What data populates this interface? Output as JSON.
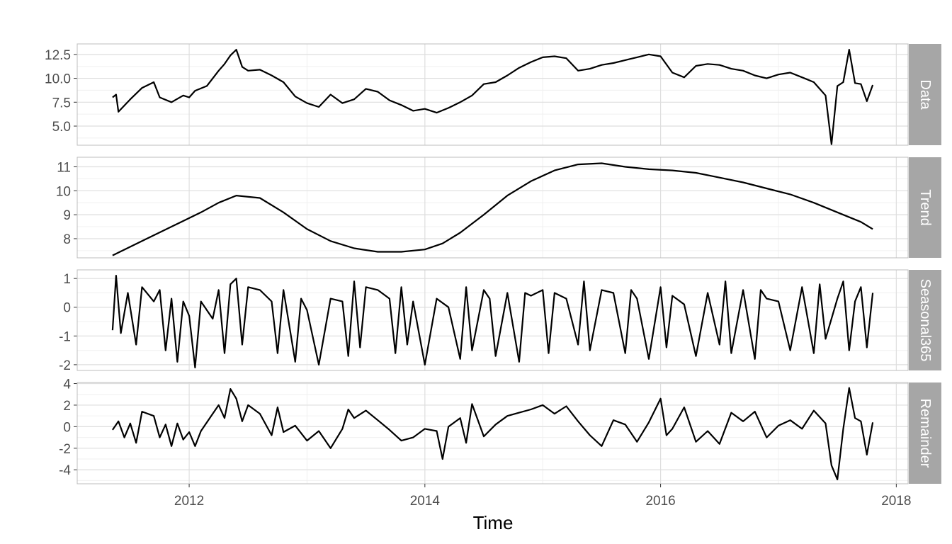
{
  "chart_data": {
    "type": "line",
    "title": "",
    "xlabel": "Time",
    "x_axis": {
      "range": [
        2011.05,
        2018.1
      ],
      "ticks": [
        2012,
        2014,
        2016,
        2018
      ],
      "tick_labels": [
        "2012",
        "2014",
        "2016",
        "2018"
      ],
      "grid": true
    },
    "legend": "none",
    "line_color": "#000000",
    "panels": [
      {
        "strip_label": "Data",
        "ylim": [
          3.0,
          13.6
        ],
        "y_ticks": [
          5.0,
          7.5,
          10.0,
          12.5
        ],
        "y_tick_labels": [
          "5.0",
          "7.5",
          "10.0",
          "12.5"
        ],
        "series": {
          "x": [
            2011.35,
            2011.38,
            2011.4,
            2011.5,
            2011.6,
            2011.7,
            2011.75,
            2011.85,
            2011.95,
            2012.0,
            2012.05,
            2012.15,
            2012.25,
            2012.3,
            2012.35,
            2012.4,
            2012.45,
            2012.5,
            2012.6,
            2012.7,
            2012.8,
            2012.9,
            2013.0,
            2013.1,
            2013.2,
            2013.3,
            2013.4,
            2013.5,
            2013.6,
            2013.7,
            2013.8,
            2013.9,
            2014.0,
            2014.1,
            2014.2,
            2014.3,
            2014.4,
            2014.5,
            2014.6,
            2014.7,
            2014.8,
            2014.9,
            2015.0,
            2015.1,
            2015.2,
            2015.3,
            2015.4,
            2015.5,
            2015.6,
            2015.7,
            2015.8,
            2015.9,
            2016.0,
            2016.1,
            2016.2,
            2016.3,
            2016.4,
            2016.5,
            2016.6,
            2016.7,
            2016.8,
            2016.9,
            2017.0,
            2017.1,
            2017.2,
            2017.3,
            2017.4,
            2017.45,
            2017.5,
            2017.55,
            2017.6,
            2017.65,
            2017.7,
            2017.75,
            2017.8
          ],
          "values": [
            8.0,
            8.3,
            6.5,
            7.8,
            9.0,
            9.6,
            8.0,
            7.5,
            8.2,
            8.0,
            8.7,
            9.2,
            10.8,
            11.5,
            12.4,
            13.0,
            11.2,
            10.8,
            10.9,
            10.3,
            9.6,
            8.1,
            7.4,
            7.0,
            8.3,
            7.4,
            7.8,
            8.9,
            8.6,
            7.7,
            7.2,
            6.6,
            6.8,
            6.4,
            6.9,
            7.5,
            8.2,
            9.4,
            9.6,
            10.3,
            11.1,
            11.7,
            12.2,
            12.3,
            12.1,
            10.8,
            11.0,
            11.4,
            11.6,
            11.9,
            12.2,
            12.5,
            12.3,
            10.6,
            10.1,
            11.3,
            11.5,
            11.4,
            11.0,
            10.8,
            10.3,
            10.0,
            10.4,
            10.6,
            10.1,
            9.6,
            8.2,
            3.1,
            9.2,
            9.6,
            13.0,
            9.5,
            9.4,
            7.6,
            9.3
          ]
        }
      },
      {
        "strip_label": "Trend",
        "ylim": [
          7.2,
          11.4
        ],
        "y_ticks": [
          8,
          9,
          10,
          11
        ],
        "y_tick_labels": [
          "8",
          "9",
          "10",
          "11"
        ],
        "series": {
          "x": [
            2011.35,
            2011.6,
            2011.85,
            2012.1,
            2012.25,
            2012.4,
            2012.6,
            2012.8,
            2013.0,
            2013.2,
            2013.4,
            2013.6,
            2013.8,
            2014.0,
            2014.15,
            2014.3,
            2014.5,
            2014.7,
            2014.9,
            2015.1,
            2015.3,
            2015.5,
            2015.7,
            2015.9,
            2016.1,
            2016.3,
            2016.5,
            2016.7,
            2016.9,
            2017.1,
            2017.3,
            2017.5,
            2017.7,
            2017.8
          ],
          "values": [
            7.3,
            7.9,
            8.5,
            9.1,
            9.5,
            9.8,
            9.7,
            9.1,
            8.4,
            7.9,
            7.6,
            7.45,
            7.45,
            7.55,
            7.8,
            8.25,
            9.0,
            9.8,
            10.4,
            10.85,
            11.1,
            11.15,
            11.0,
            10.9,
            10.85,
            10.75,
            10.55,
            10.35,
            10.1,
            9.85,
            9.5,
            9.1,
            8.7,
            8.4
          ]
        }
      },
      {
        "strip_label": "Seasonal365",
        "ylim": [
          -2.2,
          1.3
        ],
        "y_ticks": [
          -2,
          -1,
          0,
          1
        ],
        "y_tick_labels": [
          "-2",
          "-1",
          "0",
          "1"
        ],
        "series": {
          "x": [
            2011.35,
            2011.38,
            2011.42,
            2011.48,
            2011.55,
            2011.6,
            2011.7,
            2011.75,
            2011.8,
            2011.85,
            2011.9,
            2011.95,
            2012.0,
            2012.05,
            2012.1,
            2012.2,
            2012.25,
            2012.3,
            2012.35,
            2012.4,
            2012.45,
            2012.5,
            2012.6,
            2012.7,
            2012.75,
            2012.8,
            2012.9,
            2012.95,
            2013.0,
            2013.1,
            2013.2,
            2013.3,
            2013.35,
            2013.4,
            2013.45,
            2013.5,
            2013.6,
            2013.7,
            2013.75,
            2013.8,
            2013.85,
            2013.9,
            2014.0,
            2014.1,
            2014.2,
            2014.3,
            2014.35,
            2014.4,
            2014.5,
            2014.55,
            2014.6,
            2014.7,
            2014.8,
            2014.85,
            2014.9,
            2015.0,
            2015.05,
            2015.1,
            2015.2,
            2015.3,
            2015.35,
            2015.4,
            2015.5,
            2015.6,
            2015.7,
            2015.75,
            2015.8,
            2015.9,
            2016.0,
            2016.05,
            2016.1,
            2016.2,
            2016.3,
            2016.4,
            2016.5,
            2016.55,
            2016.6,
            2016.7,
            2016.8,
            2016.85,
            2016.9,
            2017.0,
            2017.1,
            2017.2,
            2017.3,
            2017.35,
            2017.4,
            2017.5,
            2017.55,
            2017.6,
            2017.65,
            2017.7,
            2017.75,
            2017.8
          ],
          "values": [
            -0.8,
            1.1,
            -0.9,
            0.5,
            -1.3,
            0.7,
            0.2,
            0.6,
            -1.5,
            0.3,
            -1.9,
            0.2,
            -0.3,
            -2.1,
            0.2,
            -0.4,
            0.6,
            -1.6,
            0.8,
            1.0,
            -1.3,
            0.7,
            0.6,
            0.2,
            -1.6,
            0.6,
            -1.9,
            0.3,
            -0.1,
            -2.0,
            0.3,
            0.2,
            -1.7,
            0.9,
            -1.4,
            0.7,
            0.6,
            0.3,
            -1.6,
            0.7,
            -1.3,
            0.2,
            -2.0,
            0.3,
            0.0,
            -1.8,
            0.7,
            -1.5,
            0.6,
            0.3,
            -1.7,
            0.5,
            -1.9,
            0.5,
            0.4,
            0.6,
            -1.6,
            0.5,
            0.3,
            -1.3,
            0.9,
            -1.5,
            0.6,
            0.5,
            -1.6,
            0.6,
            0.3,
            -1.8,
            0.7,
            -1.4,
            0.4,
            0.1,
            -1.7,
            0.5,
            -1.3,
            0.9,
            -1.6,
            0.6,
            -1.8,
            0.6,
            0.3,
            0.2,
            -1.5,
            0.7,
            -1.6,
            0.8,
            -1.1,
            0.3,
            0.9,
            -1.5,
            0.2,
            0.7,
            -1.4,
            0.5
          ]
        }
      },
      {
        "strip_label": "Remainder",
        "ylim": [
          -5.3,
          4.1
        ],
        "y_ticks": [
          -4,
          -2,
          0,
          2,
          4
        ],
        "y_tick_labels": [
          "-4",
          "-2",
          "0",
          "2",
          "4"
        ],
        "series": {
          "x": [
            2011.35,
            2011.4,
            2011.45,
            2011.5,
            2011.55,
            2011.6,
            2011.7,
            2011.75,
            2011.8,
            2011.85,
            2011.9,
            2011.95,
            2012.0,
            2012.05,
            2012.1,
            2012.2,
            2012.25,
            2012.3,
            2012.35,
            2012.4,
            2012.45,
            2012.5,
            2012.6,
            2012.7,
            2012.75,
            2012.8,
            2012.9,
            2013.0,
            2013.1,
            2013.2,
            2013.3,
            2013.35,
            2013.4,
            2013.5,
            2013.6,
            2013.7,
            2013.8,
            2013.9,
            2014.0,
            2014.1,
            2014.15,
            2014.2,
            2014.3,
            2014.35,
            2014.4,
            2014.5,
            2014.6,
            2014.7,
            2014.8,
            2014.9,
            2015.0,
            2015.1,
            2015.2,
            2015.3,
            2015.4,
            2015.5,
            2015.6,
            2015.7,
            2015.8,
            2015.9,
            2016.0,
            2016.05,
            2016.1,
            2016.2,
            2016.3,
            2016.4,
            2016.5,
            2016.6,
            2016.7,
            2016.8,
            2016.9,
            2017.0,
            2017.1,
            2017.2,
            2017.3,
            2017.4,
            2017.45,
            2017.5,
            2017.55,
            2017.6,
            2017.65,
            2017.7,
            2017.75,
            2017.8
          ],
          "values": [
            -0.3,
            0.5,
            -1.0,
            0.3,
            -1.5,
            1.4,
            1.0,
            -1.0,
            0.2,
            -1.8,
            0.3,
            -1.2,
            -0.5,
            -1.8,
            -0.4,
            1.2,
            2.0,
            0.8,
            3.5,
            2.6,
            0.5,
            2.0,
            1.2,
            -0.8,
            1.8,
            -0.5,
            0.1,
            -1.3,
            -0.4,
            -2.0,
            -0.2,
            1.6,
            0.8,
            1.5,
            0.6,
            -0.3,
            -1.3,
            -1.0,
            -0.2,
            -0.4,
            -3.0,
            0.0,
            0.8,
            -1.5,
            2.1,
            -0.9,
            0.2,
            1.0,
            1.3,
            1.6,
            2.0,
            1.2,
            1.9,
            0.5,
            -0.8,
            -1.8,
            0.6,
            0.2,
            -1.4,
            0.4,
            2.6,
            -0.8,
            -0.2,
            1.8,
            -1.4,
            -0.4,
            -1.6,
            1.3,
            0.5,
            1.4,
            -1.0,
            0.1,
            0.6,
            -0.2,
            1.5,
            0.3,
            -3.6,
            -4.9,
            -0.2,
            3.6,
            0.8,
            0.5,
            -2.6,
            0.4
          ]
        }
      }
    ]
  }
}
